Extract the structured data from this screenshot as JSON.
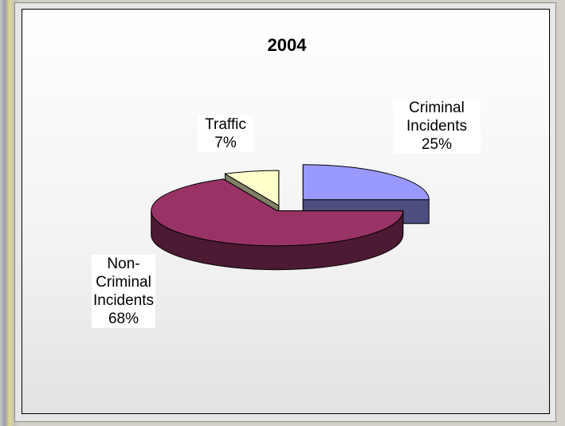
{
  "chart_data": {
    "type": "pie",
    "title": "2004",
    "categories": [
      "Criminal Incidents",
      "Non-Criminal Incidents",
      "Traffic"
    ],
    "values": [
      25,
      68,
      7
    ],
    "value_labels": [
      "25%",
      "68%",
      "7%"
    ],
    "colors": [
      "#9999ff",
      "#993366",
      "#ffffcc"
    ]
  }
}
